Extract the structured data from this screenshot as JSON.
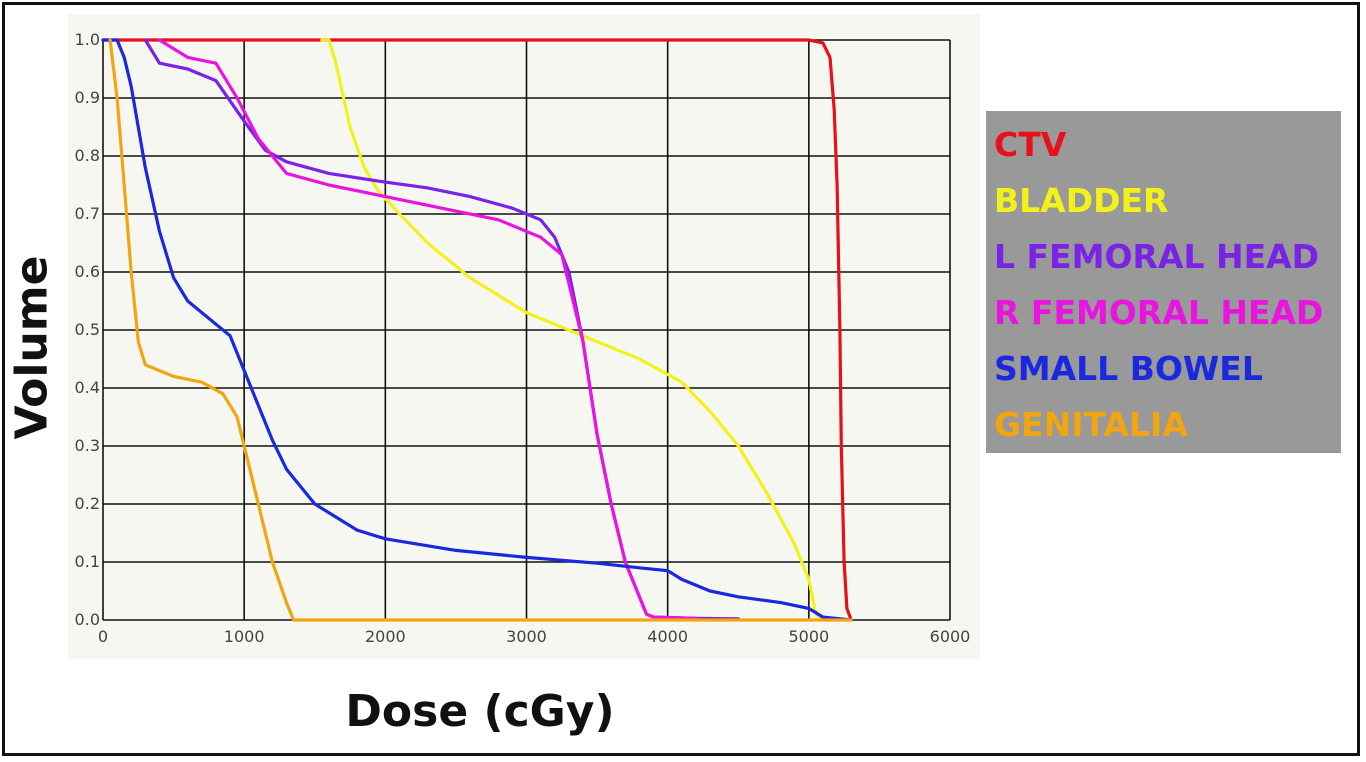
{
  "chart_data": {
    "type": "line",
    "title": "",
    "xlabel": "Dose (cGy)",
    "ylabel": "Volume",
    "xlim": [
      0,
      6000
    ],
    "ylim": [
      0,
      1.0
    ],
    "x_ticks": [
      "0",
      "1000",
      "2000",
      "3000",
      "4000",
      "5000",
      "6000"
    ],
    "y_ticks": [
      "0.0",
      "0.1",
      "0.2",
      "0.3",
      "0.4",
      "0.5",
      "0.6",
      "0.7",
      "0.8",
      "0.9",
      "1.0"
    ],
    "grid": true,
    "legend_position": "right",
    "series": [
      {
        "name": "CTV",
        "color": "#e8101a",
        "points": [
          [
            0,
            1.0
          ],
          [
            5000,
            1.0
          ],
          [
            5100,
            0.995
          ],
          [
            5150,
            0.97
          ],
          [
            5180,
            0.88
          ],
          [
            5200,
            0.75
          ],
          [
            5220,
            0.5
          ],
          [
            5230,
            0.3
          ],
          [
            5250,
            0.1
          ],
          [
            5270,
            0.02
          ],
          [
            5300,
            0.0
          ]
        ]
      },
      {
        "name": "BLADDER",
        "color": "#f2f21a",
        "points": [
          [
            1550,
            1.0
          ],
          [
            1600,
            1.0
          ],
          [
            1650,
            0.96
          ],
          [
            1750,
            0.85
          ],
          [
            1850,
            0.78
          ],
          [
            1950,
            0.74
          ],
          [
            2100,
            0.7
          ],
          [
            2300,
            0.65
          ],
          [
            2600,
            0.59
          ],
          [
            3000,
            0.53
          ],
          [
            3400,
            0.49
          ],
          [
            3800,
            0.45
          ],
          [
            4100,
            0.41
          ],
          [
            4300,
            0.36
          ],
          [
            4500,
            0.3
          ],
          [
            4700,
            0.22
          ],
          [
            4900,
            0.13
          ],
          [
            5000,
            0.07
          ],
          [
            5050,
            0.01
          ],
          [
            5100,
            0.0
          ]
        ]
      },
      {
        "name": "L FEMORAL HEAD",
        "color": "#7a22e6",
        "points": [
          [
            300,
            1.0
          ],
          [
            400,
            0.96
          ],
          [
            600,
            0.95
          ],
          [
            800,
            0.93
          ],
          [
            1000,
            0.86
          ],
          [
            1150,
            0.81
          ],
          [
            1300,
            0.79
          ],
          [
            1600,
            0.77
          ],
          [
            2000,
            0.755
          ],
          [
            2300,
            0.745
          ],
          [
            2600,
            0.73
          ],
          [
            2900,
            0.71
          ],
          [
            3100,
            0.69
          ],
          [
            3200,
            0.66
          ],
          [
            3300,
            0.6
          ],
          [
            3400,
            0.48
          ],
          [
            3500,
            0.32
          ],
          [
            3600,
            0.2
          ],
          [
            3700,
            0.1
          ],
          [
            3800,
            0.04
          ],
          [
            3850,
            0.01
          ],
          [
            3900,
            0.005
          ],
          [
            4200,
            0.003
          ],
          [
            4500,
            0.002
          ]
        ]
      },
      {
        "name": "R FEMORAL HEAD",
        "color": "#e815e0",
        "points": [
          [
            400,
            1.0
          ],
          [
            600,
            0.97
          ],
          [
            800,
            0.96
          ],
          [
            950,
            0.9
          ],
          [
            1100,
            0.83
          ],
          [
            1300,
            0.77
          ],
          [
            1600,
            0.75
          ],
          [
            2000,
            0.73
          ],
          [
            2400,
            0.71
          ],
          [
            2800,
            0.69
          ],
          [
            3100,
            0.66
          ],
          [
            3250,
            0.63
          ],
          [
            3300,
            0.58
          ],
          [
            3400,
            0.48
          ],
          [
            3500,
            0.32
          ],
          [
            3600,
            0.2
          ],
          [
            3700,
            0.1
          ],
          [
            3800,
            0.04
          ],
          [
            3850,
            0.01
          ],
          [
            3900,
            0.005
          ],
          [
            4200,
            0.003
          ]
        ]
      },
      {
        "name": "SMALL BOWEL",
        "color": "#1a28e0",
        "points": [
          [
            0,
            1.0
          ],
          [
            100,
            1.0
          ],
          [
            150,
            0.97
          ],
          [
            200,
            0.92
          ],
          [
            300,
            0.78
          ],
          [
            400,
            0.67
          ],
          [
            500,
            0.59
          ],
          [
            600,
            0.55
          ],
          [
            800,
            0.51
          ],
          [
            900,
            0.49
          ],
          [
            1000,
            0.43
          ],
          [
            1100,
            0.37
          ],
          [
            1200,
            0.31
          ],
          [
            1300,
            0.26
          ],
          [
            1500,
            0.2
          ],
          [
            1800,
            0.155
          ],
          [
            2000,
            0.14
          ],
          [
            2500,
            0.12
          ],
          [
            3000,
            0.108
          ],
          [
            3500,
            0.098
          ],
          [
            3800,
            0.09
          ],
          [
            4000,
            0.085
          ],
          [
            4100,
            0.07
          ],
          [
            4300,
            0.05
          ],
          [
            4500,
            0.04
          ],
          [
            4800,
            0.03
          ],
          [
            5000,
            0.02
          ],
          [
            5100,
            0.005
          ],
          [
            5300,
            0.0
          ]
        ]
      },
      {
        "name": "GENITALIA",
        "color": "#f2a511",
        "points": [
          [
            50,
            1.0
          ],
          [
            100,
            0.9
          ],
          [
            150,
            0.75
          ],
          [
            200,
            0.6
          ],
          [
            250,
            0.48
          ],
          [
            300,
            0.44
          ],
          [
            400,
            0.43
          ],
          [
            500,
            0.42
          ],
          [
            700,
            0.41
          ],
          [
            850,
            0.39
          ],
          [
            950,
            0.35
          ],
          [
            1000,
            0.3
          ],
          [
            1100,
            0.2
          ],
          [
            1200,
            0.1
          ],
          [
            1300,
            0.03
          ],
          [
            1350,
            0.0
          ],
          [
            5300,
            0.0
          ]
        ]
      }
    ]
  },
  "legend": {
    "items": [
      {
        "label": "CTV",
        "color": "#e8101a"
      },
      {
        "label": "BLADDER",
        "color": "#f2f21a"
      },
      {
        "label": "L FEMORAL HEAD",
        "color": "#7a22e6"
      },
      {
        "label": "R FEMORAL HEAD",
        "color": "#e815e0"
      },
      {
        "label": "SMALL BOWEL",
        "color": "#1a28e0"
      },
      {
        "label": "GENITALIA",
        "color": "#f2a511"
      }
    ]
  }
}
